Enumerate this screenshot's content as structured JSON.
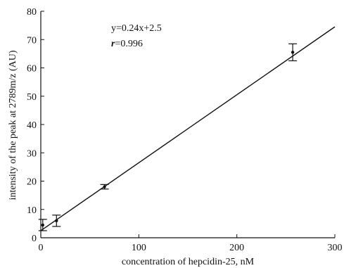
{
  "chart_data": {
    "type": "scatter",
    "title": "",
    "xlabel": "concentration of hepcidin-25, nM",
    "ylabel": "intensity of the peak at 2789m/z (AU)",
    "xlim": [
      0,
      300
    ],
    "ylim": [
      0,
      80
    ],
    "xticks": [
      0,
      100,
      200,
      300
    ],
    "yticks": [
      0,
      10,
      20,
      30,
      40,
      50,
      60,
      70,
      80
    ],
    "grid": false,
    "legend": "none",
    "points": [
      {
        "x": 2,
        "y": 4.5,
        "err": 2.0
      },
      {
        "x": 16,
        "y": 6.0,
        "err": 2.0
      },
      {
        "x": 65,
        "y": 18.0,
        "err": 0.8
      },
      {
        "x": 257,
        "y": 65.5,
        "err": 3.0
      }
    ],
    "fit": {
      "slope": 0.24,
      "intercept": 2.5,
      "x_range": [
        0,
        300
      ]
    },
    "annotation": {
      "equation": "y=0.24x+2.5",
      "r_symbol": "r",
      "r_value": "=0.996"
    },
    "colors": {
      "line": "#111111",
      "marker": "#111111"
    }
  }
}
